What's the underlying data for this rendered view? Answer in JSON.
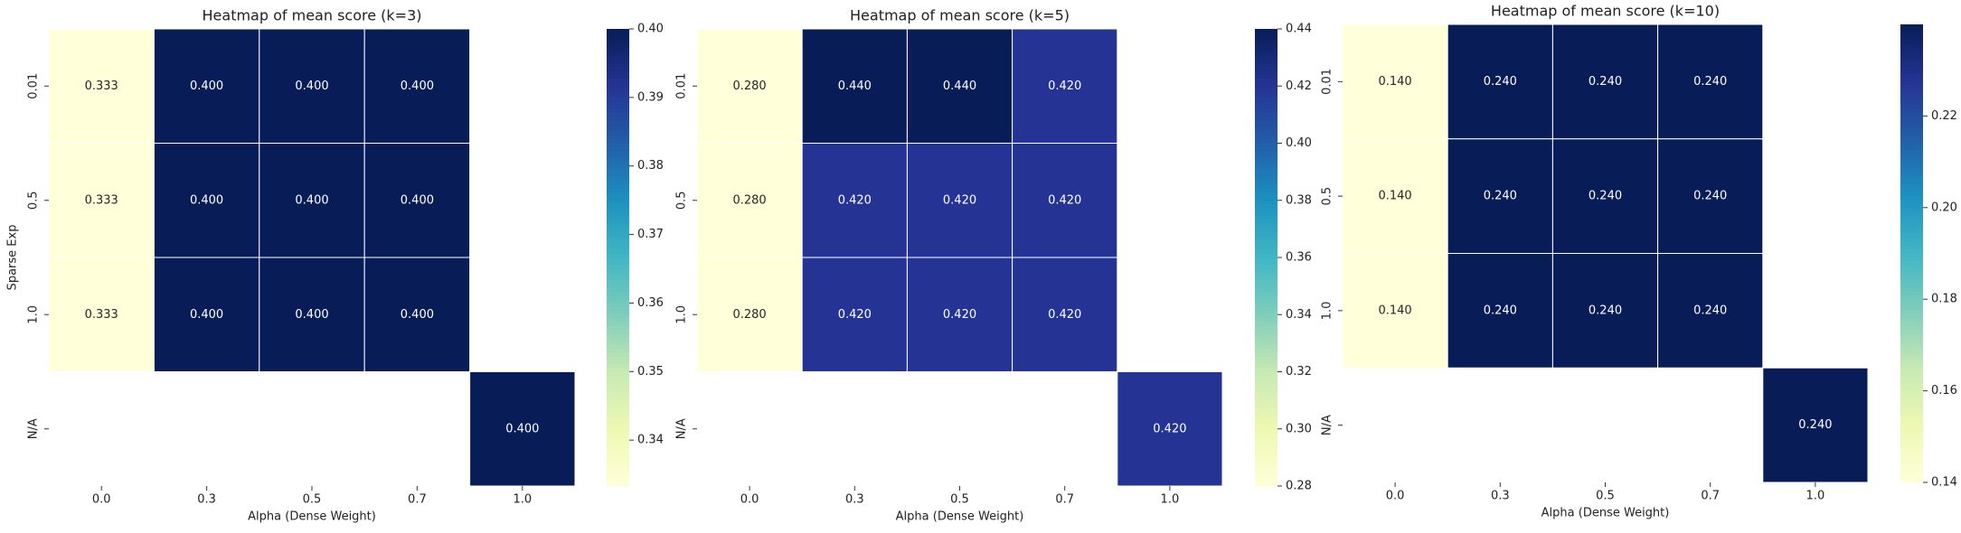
{
  "chart_data": [
    {
      "type": "heatmap",
      "title": "Heatmap of mean score (k=3)",
      "xlabel": "Alpha (Dense Weight)",
      "ylabel": "Sparse Exp",
      "x_categories": [
        "0.0",
        "0.3",
        "0.5",
        "0.7",
        "1.0"
      ],
      "y_categories": [
        "0.01",
        "0.5",
        "1.0",
        "N/A"
      ],
      "values": [
        [
          0.333,
          0.4,
          0.4,
          0.4,
          null
        ],
        [
          0.333,
          0.4,
          0.4,
          0.4,
          null
        ],
        [
          0.333,
          0.4,
          0.4,
          0.4,
          null
        ],
        [
          null,
          null,
          null,
          null,
          0.4
        ]
      ],
      "cell_labels": [
        [
          "0.333",
          "0.400",
          "0.400",
          "0.400",
          ""
        ],
        [
          "0.333",
          "0.400",
          "0.400",
          "0.400",
          ""
        ],
        [
          "0.333",
          "0.400",
          "0.400",
          "0.400",
          ""
        ],
        [
          "",
          "",
          "",
          "",
          "0.400"
        ]
      ],
      "colorbar_range": [
        0.3333,
        0.4
      ],
      "colorbar_ticks": [
        "0.34",
        "0.35",
        "0.36",
        "0.37",
        "0.38",
        "0.39",
        "0.40"
      ],
      "colorbar_tick_values": [
        0.34,
        0.35,
        0.36,
        0.37,
        0.38,
        0.39,
        0.4
      ],
      "colormap": "YlGnBu"
    },
    {
      "type": "heatmap",
      "title": "Heatmap of mean score (k=5)",
      "xlabel": "Alpha (Dense Weight)",
      "ylabel": "",
      "x_categories": [
        "0.0",
        "0.3",
        "0.5",
        "0.7",
        "1.0"
      ],
      "y_categories": [
        "0.01",
        "0.5",
        "1.0",
        "N/A"
      ],
      "values": [
        [
          0.28,
          0.44,
          0.44,
          0.42,
          null
        ],
        [
          0.28,
          0.42,
          0.42,
          0.42,
          null
        ],
        [
          0.28,
          0.42,
          0.42,
          0.42,
          null
        ],
        [
          null,
          null,
          null,
          null,
          0.42
        ]
      ],
      "cell_labels": [
        [
          "0.280",
          "0.440",
          "0.440",
          "0.420",
          ""
        ],
        [
          "0.280",
          "0.420",
          "0.420",
          "0.420",
          ""
        ],
        [
          "0.280",
          "0.420",
          "0.420",
          "0.420",
          ""
        ],
        [
          "",
          "",
          "",
          "",
          "0.420"
        ]
      ],
      "colorbar_range": [
        0.28,
        0.44
      ],
      "colorbar_ticks": [
        "0.28",
        "0.30",
        "0.32",
        "0.34",
        "0.36",
        "0.38",
        "0.40",
        "0.42",
        "0.44"
      ],
      "colorbar_tick_values": [
        0.28,
        0.3,
        0.32,
        0.34,
        0.36,
        0.38,
        0.4,
        0.42,
        0.44
      ],
      "colormap": "YlGnBu"
    },
    {
      "type": "heatmap",
      "title": "Heatmap of mean score (k=10)",
      "xlabel": "Alpha (Dense Weight)",
      "ylabel": "",
      "x_categories": [
        "0.0",
        "0.3",
        "0.5",
        "0.7",
        "1.0"
      ],
      "y_categories": [
        "0.01",
        "0.5",
        "1.0",
        "N/A"
      ],
      "values": [
        [
          0.14,
          0.24,
          0.24,
          0.24,
          null
        ],
        [
          0.14,
          0.24,
          0.24,
          0.24,
          null
        ],
        [
          0.14,
          0.24,
          0.24,
          0.24,
          null
        ],
        [
          null,
          null,
          null,
          null,
          0.24
        ]
      ],
      "cell_labels": [
        [
          "0.140",
          "0.240",
          "0.240",
          "0.240",
          ""
        ],
        [
          "0.140",
          "0.240",
          "0.240",
          "0.240",
          ""
        ],
        [
          "0.140",
          "0.240",
          "0.240",
          "0.240",
          ""
        ],
        [
          "",
          "",
          "",
          "",
          "0.240"
        ]
      ],
      "colorbar_range": [
        0.14,
        0.24
      ],
      "colorbar_ticks": [
        "0.14",
        "0.16",
        "0.18",
        "0.20",
        "0.22"
      ],
      "colorbar_tick_values": [
        0.14,
        0.16,
        0.18,
        0.2,
        0.22
      ],
      "colormap": "YlGnBu"
    }
  ]
}
